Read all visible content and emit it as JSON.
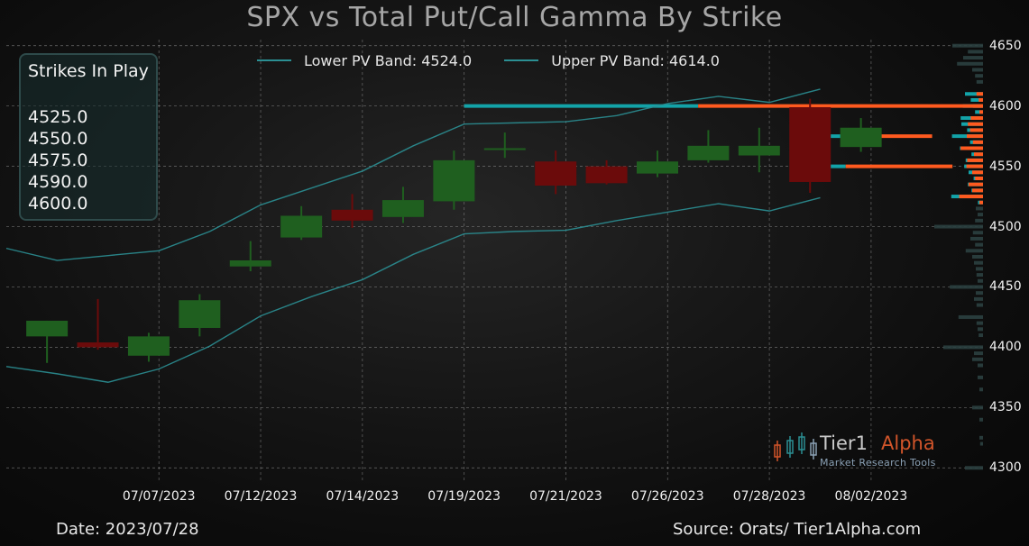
{
  "title": "SPX vs Total Put/Call Gamma By Strike",
  "legend": {
    "lower": "Lower PV Band: 4524.0",
    "upper": "Upper PV Band: 4614.0"
  },
  "strikes_box": {
    "heading": "Strikes In Play",
    "values": [
      "4525.0",
      "4550.0",
      "4575.0",
      "4590.0",
      "4600.0"
    ]
  },
  "footer": {
    "date": "Date: 2023/07/28",
    "source": "Source: Orats/ Tier1Alpha.com"
  },
  "brand": {
    "name_part1": "Tier1",
    "name_part2": "Alpha",
    "tagline": "Market  Research Tools"
  },
  "colors": {
    "up_candle": "#1f5f1f",
    "down_candle": "#6b0b0b",
    "band": "#2b8f93",
    "call_gamma": "#ff5a1f",
    "put_gamma": "#13a3a8",
    "bar_grey": "#2b4040"
  },
  "chart_data": {
    "type": "candlestick",
    "title": "SPX vs Total Put/Call Gamma By Strike",
    "ylim": [
      4295,
      4655
    ],
    "yticks": [
      4300,
      4350,
      4400,
      4450,
      4500,
      4550,
      4600,
      4650
    ],
    "xtick_labels": [
      "07/07/2023",
      "07/12/2023",
      "07/14/2023",
      "07/19/2023",
      "07/21/2023",
      "07/26/2023",
      "07/28/2023",
      "08/02/2023"
    ],
    "xtick_index": [
      3,
      5,
      7,
      9,
      11,
      13,
      15,
      17
    ],
    "x_range": [
      0,
      19.2
    ],
    "grid": true,
    "candles": [
      {
        "i": 0.8,
        "open": 4409,
        "close": 4422,
        "high": 4422,
        "low": 4387
      },
      {
        "i": 1.8,
        "open": 4404,
        "close": 4400,
        "high": 4440,
        "low": 4398
      },
      {
        "i": 2.8,
        "open": 4393,
        "close": 4409,
        "high": 4412,
        "low": 4388
      },
      {
        "i": 3.8,
        "open": 4416,
        "close": 4439,
        "high": 4444,
        "low": 4409
      },
      {
        "i": 4.8,
        "open": 4467,
        "close": 4472,
        "high": 4488,
        "low": 4463
      },
      {
        "i": 5.8,
        "open": 4491,
        "close": 4509,
        "high": 4517,
        "low": 4489
      },
      {
        "i": 6.8,
        "open": 4514,
        "close": 4505,
        "high": 4527,
        "low": 4499
      },
      {
        "i": 7.8,
        "open": 4508,
        "close": 4522,
        "high": 4533,
        "low": 4503
      },
      {
        "i": 8.8,
        "open": 4521,
        "close": 4555,
        "high": 4563,
        "low": 4514
      },
      {
        "i": 9.8,
        "open": 4565,
        "close": 4565,
        "high": 4578,
        "low": 4557
      },
      {
        "i": 10.8,
        "open": 4554,
        "close": 4534,
        "high": 4563,
        "low": 4527
      },
      {
        "i": 11.8,
        "open": 4550,
        "close": 4536,
        "high": 4555,
        "low": 4535
      },
      {
        "i": 12.8,
        "open": 4544,
        "close": 4554,
        "high": 4563,
        "low": 4541
      },
      {
        "i": 13.8,
        "open": 4555,
        "close": 4567,
        "high": 4580,
        "low": 4553
      },
      {
        "i": 14.8,
        "open": 4559,
        "close": 4567,
        "high": 4582,
        "low": 4545
      },
      {
        "i": 15.8,
        "open": 4599,
        "close": 4537,
        "high": 4606,
        "low": 4528
      },
      {
        "i": 16.8,
        "open": 4566,
        "close": 4582,
        "high": 4590,
        "low": 4562
      }
    ],
    "series": [
      {
        "name": "Lower PV Band: 4524.0",
        "x": [
          0,
          1,
          2,
          3,
          4,
          5,
          6,
          7,
          8,
          9,
          10,
          11,
          12,
          13,
          14,
          15,
          16
        ],
        "values": [
          4384,
          4378,
          4371,
          4382,
          4401,
          4426,
          4442,
          4456,
          4477,
          4494,
          4496,
          4497,
          4505,
          4512,
          4519,
          4513,
          4524
        ]
      },
      {
        "name": "Upper PV Band: 4614.0",
        "x": [
          0,
          1,
          2,
          3,
          4,
          5,
          6,
          7,
          8,
          9,
          10,
          11,
          12,
          13,
          14,
          15,
          16
        ],
        "values": [
          4482,
          4472,
          4476,
          4480,
          4496,
          4518,
          4532,
          4546,
          4567,
          4585,
          4586,
          4587,
          4592,
          4602,
          4608,
          4603,
          4614
        ]
      }
    ],
    "gamma_lines": [
      {
        "strike": 4600,
        "x_start": 9.0,
        "put_until": 13.6,
        "call_until": 19.2
      },
      {
        "strike": 4575,
        "x_start": 16.1,
        "put_until": 16.9,
        "call_until": 18.2
      },
      {
        "strike": 4550,
        "x_start": 15.8,
        "put_until": 16.5,
        "call_until": 18.6
      }
    ],
    "gamma_bars": [
      {
        "strike": 4650,
        "call": 0.0,
        "put": 0.0,
        "other": 0.85
      },
      {
        "strike": 4645,
        "call": 0.0,
        "put": 0.0,
        "other": 0.42
      },
      {
        "strike": 4640,
        "call": 0.0,
        "put": 0.0,
        "other": 0.55
      },
      {
        "strike": 4635,
        "call": 0.0,
        "put": 0.0,
        "other": 0.72
      },
      {
        "strike": 4630,
        "call": 0.0,
        "put": 0.0,
        "other": 0.3
      },
      {
        "strike": 4625,
        "call": 0.0,
        "put": 0.0,
        "other": 0.22
      },
      {
        "strike": 4620,
        "call": 0.0,
        "put": 0.0,
        "other": 0.18
      },
      {
        "strike": 4610,
        "call": 0.18,
        "put": 0.5,
        "other": 0
      },
      {
        "strike": 4605,
        "call": 0.12,
        "put": 0.34,
        "other": 0
      },
      {
        "strike": 4600,
        "call": 0.28,
        "put": 0.56,
        "other": 0
      },
      {
        "strike": 4595,
        "call": 0.1,
        "put": 0.22,
        "other": 0
      },
      {
        "strike": 4590,
        "call": 0.34,
        "put": 0.62,
        "other": 0
      },
      {
        "strike": 4585,
        "call": 0.42,
        "put": 0.6,
        "other": 0
      },
      {
        "strike": 4580,
        "call": 0.36,
        "put": 0.44,
        "other": 0
      },
      {
        "strike": 4575,
        "call": 0.45,
        "put": 0.86,
        "other": 0
      },
      {
        "strike": 4570,
        "call": 0.28,
        "put": 0.36,
        "other": 0
      },
      {
        "strike": 4565,
        "call": 0.62,
        "put": 0.64,
        "other": 0
      },
      {
        "strike": 4560,
        "call": 0.25,
        "put": 0.32,
        "other": 0
      },
      {
        "strike": 4555,
        "call": 0.44,
        "put": 0.48,
        "other": 0
      },
      {
        "strike": 4550,
        "call": 0.46,
        "put": 0.52,
        "other": 0
      },
      {
        "strike": 4545,
        "call": 0.3,
        "put": 0.4,
        "other": 0
      },
      {
        "strike": 4540,
        "call": 0.22,
        "put": 0.26,
        "other": 0
      },
      {
        "strike": 4535,
        "call": 0.4,
        "put": 0.42,
        "other": 0
      },
      {
        "strike": 4530,
        "call": 0.3,
        "put": 0.32,
        "other": 0
      },
      {
        "strike": 4525,
        "call": 0.66,
        "put": 0.88,
        "other": 0
      },
      {
        "strike": 4520,
        "call": 0.1,
        "put": 0.14,
        "other": 0
      },
      {
        "strike": 4515,
        "call": 0.0,
        "put": 0.0,
        "other": 0.2
      },
      {
        "strike": 4510,
        "call": 0.0,
        "put": 0.0,
        "other": 0.15
      },
      {
        "strike": 4505,
        "call": 0.0,
        "put": 0.0,
        "other": 0.22
      },
      {
        "strike": 4500,
        "call": 0.0,
        "put": 0.0,
        "other": 1.35
      },
      {
        "strike": 4495,
        "call": 0.0,
        "put": 0.0,
        "other": 0.28
      },
      {
        "strike": 4490,
        "call": 0.0,
        "put": 0.0,
        "other": 0.35
      },
      {
        "strike": 4485,
        "call": 0.0,
        "put": 0.0,
        "other": 0.22
      },
      {
        "strike": 4480,
        "call": 0.0,
        "put": 0.0,
        "other": 0.48
      },
      {
        "strike": 4475,
        "call": 0.0,
        "put": 0.0,
        "other": 0.3
      },
      {
        "strike": 4470,
        "call": 0.0,
        "put": 0.0,
        "other": 0.25
      },
      {
        "strike": 4465,
        "call": 0.0,
        "put": 0.0,
        "other": 0.2
      },
      {
        "strike": 4460,
        "call": 0.0,
        "put": 0.0,
        "other": 0.18
      },
      {
        "strike": 4455,
        "call": 0.0,
        "put": 0.0,
        "other": 0.15
      },
      {
        "strike": 4450,
        "call": 0.0,
        "put": 0.0,
        "other": 0.92
      },
      {
        "strike": 4445,
        "call": 0.0,
        "put": 0.0,
        "other": 0.2
      },
      {
        "strike": 4440,
        "call": 0.0,
        "put": 0.0,
        "other": 0.25
      },
      {
        "strike": 4435,
        "call": 0.0,
        "put": 0.0,
        "other": 0.18
      },
      {
        "strike": 4425,
        "call": 0.0,
        "put": 0.0,
        "other": 0.68
      },
      {
        "strike": 4420,
        "call": 0.0,
        "put": 0.0,
        "other": 0.18
      },
      {
        "strike": 4415,
        "call": 0.0,
        "put": 0.0,
        "other": 0.15
      },
      {
        "strike": 4410,
        "call": 0.0,
        "put": 0.0,
        "other": 0.12
      },
      {
        "strike": 4400,
        "call": 0.0,
        "put": 0.0,
        "other": 1.1
      },
      {
        "strike": 4395,
        "call": 0.0,
        "put": 0.0,
        "other": 0.25
      },
      {
        "strike": 4390,
        "call": 0.0,
        "put": 0.0,
        "other": 0.3
      },
      {
        "strike": 4385,
        "call": 0.0,
        "put": 0.0,
        "other": 0.15
      },
      {
        "strike": 4375,
        "call": 0.0,
        "put": 0.0,
        "other": 0.15
      },
      {
        "strike": 4365,
        "call": 0.0,
        "put": 0.0,
        "other": 0.1
      },
      {
        "strike": 4350,
        "call": 0.0,
        "put": 0.0,
        "other": 0.3
      },
      {
        "strike": 4340,
        "call": 0.0,
        "put": 0.0,
        "other": 0.1
      },
      {
        "strike": 4325,
        "call": 0.0,
        "put": 0.0,
        "other": 0.1
      },
      {
        "strike": 4320,
        "call": 0.0,
        "put": 0.0,
        "other": 0.08
      },
      {
        "strike": 4300,
        "call": 0.0,
        "put": 0.0,
        "other": 0.5
      }
    ]
  }
}
